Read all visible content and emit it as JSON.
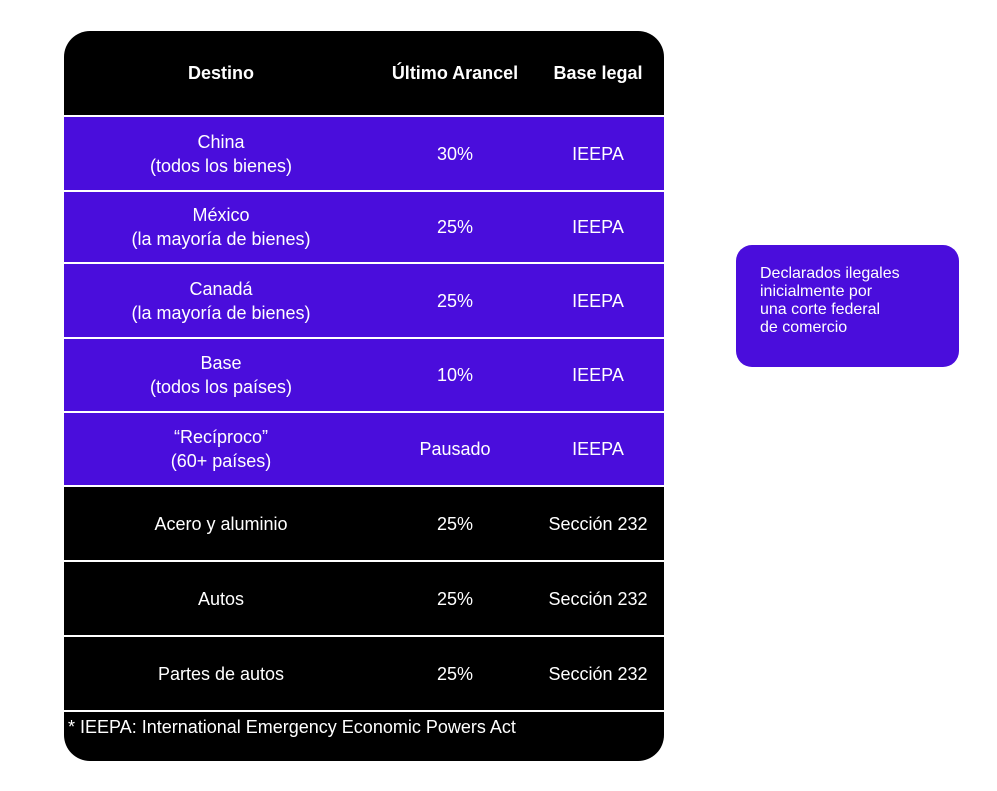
{
  "colors": {
    "card_background": "#000000",
    "accent_purple": "#4a0ddc",
    "text": "#ffffff",
    "divider": "#ffffff"
  },
  "table": {
    "headers": [
      "Destino",
      "Último Arancel",
      "Base legal"
    ],
    "rows": [
      {
        "destination": [
          "China",
          "(todos los bienes)"
        ],
        "tariff": "30%",
        "legal_basis": "IEEPA",
        "highlighted": true
      },
      {
        "destination": [
          "México",
          "(la mayoría de bienes)"
        ],
        "tariff": "25%",
        "legal_basis": "IEEPA",
        "highlighted": true
      },
      {
        "destination": [
          "Canadá",
          "(la mayoría de bienes)"
        ],
        "tariff": "25%",
        "legal_basis": "IEEPA",
        "highlighted": true
      },
      {
        "destination": [
          "Base",
          "(todos los países)"
        ],
        "tariff": "10%",
        "legal_basis": "IEEPA",
        "highlighted": true
      },
      {
        "destination": [
          "“Recíproco”",
          "(60+ países)"
        ],
        "tariff": "Pausado",
        "legal_basis": "IEEPA",
        "highlighted": true
      },
      {
        "destination": [
          "Acero y aluminio"
        ],
        "tariff": "25%",
        "legal_basis": "Sección 232",
        "highlighted": false
      },
      {
        "destination": [
          "Autos"
        ],
        "tariff": "25%",
        "legal_basis": "Sección 232",
        "highlighted": false
      },
      {
        "destination": [
          "Partes de autos"
        ],
        "tariff": "25%",
        "legal_basis": "Sección 232",
        "highlighted": false
      }
    ],
    "footnote": "* IEEPA:  International Emergency Economic Powers Act"
  },
  "callout": {
    "lines": [
      "Declarados ilegales",
      "inicialmente por",
      "una corte federal",
      "de comercio"
    ]
  }
}
